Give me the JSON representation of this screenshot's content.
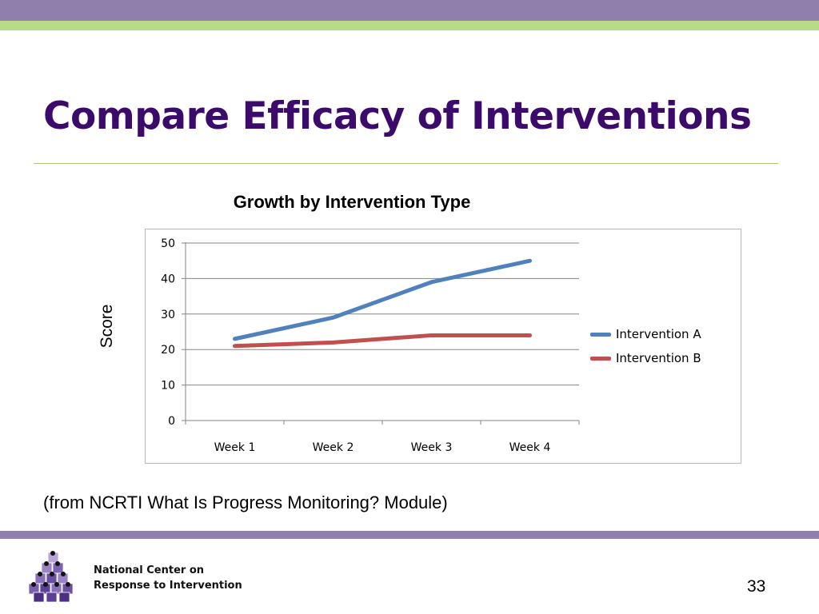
{
  "slide": {
    "title": "Compare Efficacy of Interventions",
    "source": "(from NCRTI What Is Progress Monitoring? Module)",
    "page_number": "33"
  },
  "footer": {
    "org_line1": "National Center on",
    "org_line2": "Response to Intervention"
  },
  "colors": {
    "band_purple": "#8e7fad",
    "band_green": "#b9d98e",
    "title": "#3b0a6b"
  },
  "chart_data": {
    "type": "line",
    "title": "Growth by Intervention Type",
    "xlabel": "",
    "ylabel": "Score",
    "categories": [
      "Week 1",
      "Week 2",
      "Week 3",
      "Week 4"
    ],
    "ylim": [
      0,
      50
    ],
    "yticks": [
      "0",
      "10",
      "20",
      "30",
      "40",
      "50"
    ],
    "grid": true,
    "legend_position": "right",
    "series": [
      {
        "name": "Intervention A",
        "color": "#4f81bd",
        "values": [
          23,
          29,
          39,
          45
        ]
      },
      {
        "name": "Intervention B",
        "color": "#c0504d",
        "values": [
          21,
          22,
          24,
          24
        ]
      }
    ]
  }
}
